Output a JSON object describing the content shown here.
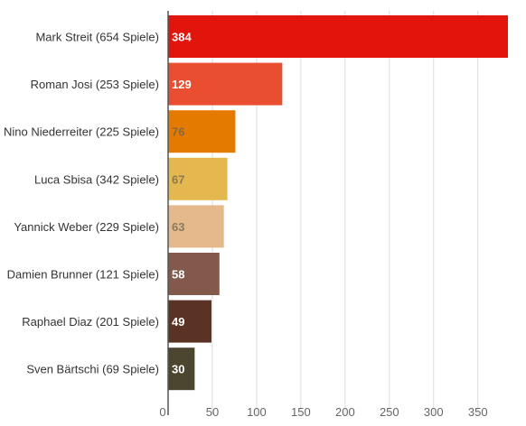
{
  "chart_data": {
    "type": "bar",
    "orientation": "horizontal",
    "categories": [
      "Mark Streit (654 Spiele)",
      "Roman Josi (253 Spiele)",
      "Nino Niederreiter (225 Spiele)",
      "Luca Sbisa (342 Spiele)",
      "Yannick Weber (229 Spiele)",
      "Damien Brunner (121 Spiele)",
      "Raphael Diaz (201 Spiele)",
      "Sven Bärtschi (69 Spiele)"
    ],
    "values": [
      384,
      129,
      76,
      67,
      63,
      58,
      49,
      30
    ],
    "value_labels": [
      "384",
      "129",
      "76",
      "67",
      "63",
      "58",
      "49",
      "30"
    ],
    "bar_colors": [
      "#e2150c",
      "#e84e2f",
      "#e47a00",
      "#e4b84f",
      "#e6b98c",
      "#82594a",
      "#5b3324",
      "#4c4630"
    ],
    "label_colors": [
      "#ffffff",
      "#ffffff",
      "#8a6a3a",
      "#8a7a50",
      "#8a7a60",
      "#ffffff",
      "#ffffff",
      "#ffffff"
    ],
    "xticks": [
      0,
      50,
      100,
      150,
      200,
      250,
      300,
      350
    ],
    "xtick_labels": [
      "0",
      "50",
      "100",
      "150",
      "200",
      "250",
      "300",
      "350"
    ],
    "xlim": [
      0,
      385
    ],
    "grid": true,
    "title": "",
    "xlabel": "",
    "ylabel": ""
  }
}
